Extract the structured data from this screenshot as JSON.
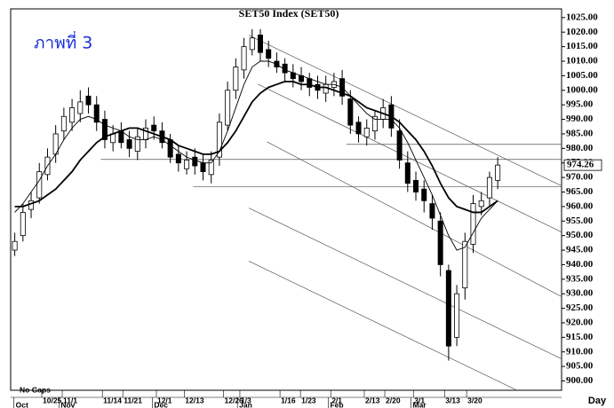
{
  "chart_data": {
    "type": "candlestick",
    "title": "SET50  Index  (SET50)",
    "annotation": "ภาพที่ 3",
    "gap_note": "No Gaps",
    "x_unit": "Day",
    "last_price": 974.26,
    "up_color": "#ffffff",
    "down_color": "#000000",
    "open": [
      945,
      950,
      959,
      963,
      971,
      978,
      986,
      989,
      992,
      998,
      995,
      990,
      982,
      986,
      983,
      979,
      983,
      988,
      986,
      983,
      978,
      973,
      977,
      975,
      971,
      977,
      988,
      1000,
      1007,
      1014,
      1019,
      1014,
      1010,
      1009,
      1006,
      1005,
      1004,
      1002,
      999,
      1001,
      1004,
      997,
      989,
      984,
      986,
      990,
      995,
      986,
      975,
      969,
      966,
      961,
      955,
      938,
      915,
      932,
      947,
      960,
      963,
      969
    ],
    "high": [
      951,
      961,
      965,
      975,
      980,
      988,
      994,
      997,
      1000,
      1001,
      998,
      993,
      988,
      989,
      986,
      987,
      990,
      991,
      989,
      985,
      981,
      979,
      980,
      978,
      979,
      992,
      1003,
      1011,
      1018,
      1021,
      1021,
      1017,
      1013,
      1011,
      1009,
      1008,
      1006,
      1005,
      1005,
      1006,
      1007,
      1000,
      991,
      990,
      993,
      997,
      998,
      990,
      979,
      972,
      969,
      964,
      958,
      940,
      933,
      951,
      964,
      965,
      972,
      977
    ],
    "low": [
      943,
      948,
      956,
      961,
      969,
      975,
      983,
      986,
      989,
      992,
      986,
      980,
      979,
      980,
      977,
      976,
      980,
      983,
      980,
      975,
      972,
      971,
      971,
      969,
      968,
      974,
      986,
      997,
      1004,
      1012,
      1010,
      1008,
      1006,
      1003,
      1001,
      1000,
      998,
      997,
      996,
      998,
      995,
      985,
      982,
      981,
      983,
      987,
      984,
      973,
      965,
      962,
      958,
      952,
      936,
      907,
      912,
      928,
      944,
      957,
      960,
      966
    ],
    "close": [
      948,
      958,
      962,
      972,
      977,
      985,
      991,
      994,
      996,
      995,
      989,
      983,
      985,
      982,
      980,
      984,
      987,
      986,
      982,
      977,
      975,
      976,
      974,
      972,
      976,
      989,
      1000,
      1008,
      1015,
      1018,
      1013,
      1011,
      1008,
      1006,
      1004,
      1003,
      1001,
      1000,
      1002,
      1003,
      998,
      988,
      985,
      987,
      991,
      994,
      987,
      976,
      968,
      965,
      962,
      956,
      940,
      912,
      930,
      948,
      961,
      962,
      970,
      974.26
    ],
    "ma_fast": [
      958,
      961,
      965,
      969,
      974,
      978,
      983,
      987,
      990,
      991,
      990,
      988,
      987,
      986,
      984,
      983,
      983,
      984,
      983,
      981,
      979,
      977,
      976,
      975,
      975,
      979,
      986,
      994,
      1002,
      1008,
      1010,
      1010,
      1009,
      1007,
      1006,
      1005,
      1004,
      1003,
      1002,
      1002,
      1001,
      998,
      995,
      992,
      990,
      990,
      990,
      987,
      982,
      976,
      970,
      964,
      957,
      950,
      945,
      946,
      951,
      956,
      959,
      962
    ],
    "ma_slow": [
      960,
      960,
      961,
      962,
      964,
      966,
      969,
      972,
      976,
      979,
      982,
      984,
      985,
      986,
      987,
      987,
      986,
      985,
      984,
      983,
      981,
      980,
      979,
      978,
      978,
      979,
      982,
      986,
      991,
      996,
      999,
      1001,
      1002,
      1003,
      1003,
      1002,
      1002,
      1001,
      1001,
      1000,
      999,
      998,
      996,
      994,
      993,
      992,
      991,
      989,
      986,
      983,
      979,
      974,
      968,
      963,
      960,
      959,
      958,
      958,
      960,
      962
    ],
    "trend_lines": [
      {
        "from": [
          28.6,
          1018.9
        ],
        "to": [
          66.8,
          967.1
        ]
      },
      {
        "from": [
          29.7,
          1002.1
        ],
        "to": [
          66.8,
          951.2
        ]
      },
      {
        "from": [
          30.8,
          982.3
        ],
        "to": [
          66.8,
          929
        ]
      },
      {
        "from": [
          28.6,
          959.5
        ],
        "to": [
          66.8,
          907.6
        ]
      },
      {
        "from": [
          28.6,
          941.2
        ],
        "to": [
          61.2,
          897
        ]
      },
      {
        "from": [
          40.5,
          981.4
        ],
        "to": [
          66.8,
          981.4
        ]
      },
      {
        "from": [
          10.5,
          976.2
        ],
        "to": [
          66.8,
          976.2
        ]
      },
      {
        "from": [
          21.8,
          966.8
        ],
        "to": [
          66.8,
          966.8
        ]
      }
    ],
    "xlim": [
      -0.5,
      66.8
    ],
    "ylim": [
      896.8,
      1028
    ],
    "xticks": [
      {
        "value": 3.3,
        "label": "10/25"
      },
      {
        "value": 5.8,
        "label": "11/1"
      },
      {
        "value": 10.7,
        "label": "11/14"
      },
      {
        "value": 13.2,
        "label": "11/21"
      },
      {
        "value": 17.3,
        "label": "12/1"
      },
      {
        "value": 20.7,
        "label": "12/13"
      },
      {
        "value": 25.5,
        "label": "12/26"
      },
      {
        "value": 27.5,
        "label": "1/3"
      },
      {
        "value": 32.4,
        "label": "1/16"
      },
      {
        "value": 34.9,
        "label": "1/23"
      },
      {
        "value": 38.6,
        "label": "2/1"
      },
      {
        "value": 42.7,
        "label": "2/13"
      },
      {
        "value": 45.2,
        "label": "2/20"
      },
      {
        "value": 48.7,
        "label": "3/1"
      },
      {
        "value": 52.5,
        "label": "3/13"
      },
      {
        "value": 55.2,
        "label": "3/20"
      }
    ],
    "month_ticks": [
      {
        "value": -0.1,
        "label": "Oct"
      },
      {
        "value": 5.4,
        "label": "Nov"
      },
      {
        "value": 16.8,
        "label": "Dec"
      },
      {
        "value": 27.2,
        "label": "Jan"
      },
      {
        "value": 38.3,
        "label": "Feb"
      },
      {
        "value": 48.4,
        "label": "Mar"
      }
    ],
    "yticks": [
      {
        "value": 900,
        "label": "900.00"
      },
      {
        "value": 905,
        "label": "905.00"
      },
      {
        "value": 910,
        "label": "910.00"
      },
      {
        "value": 915,
        "label": "915.00"
      },
      {
        "value": 920,
        "label": "920.00"
      },
      {
        "value": 925,
        "label": "925.00"
      },
      {
        "value": 930,
        "label": "930.00"
      },
      {
        "value": 935,
        "label": "935.00"
      },
      {
        "value": 940,
        "label": "940.00"
      },
      {
        "value": 945,
        "label": "945.00"
      },
      {
        "value": 950,
        "label": "950.00"
      },
      {
        "value": 955,
        "label": "955.00"
      },
      {
        "value": 960,
        "label": "960.00"
      },
      {
        "value": 965,
        "label": "965.00"
      },
      {
        "value": 970,
        "label": "970.00"
      },
      {
        "value": 975,
        "label": "975.00"
      },
      {
        "value": 980,
        "label": "980.00"
      },
      {
        "value": 985,
        "label": "985.00"
      },
      {
        "value": 990,
        "label": "990.00"
      },
      {
        "value": 995,
        "label": "995.00"
      },
      {
        "value": 1000,
        "label": "1000.00"
      },
      {
        "value": 1005,
        "label": "1005.00"
      },
      {
        "value": 1010,
        "label": "1010.00"
      },
      {
        "value": 1015,
        "label": "1015.00"
      },
      {
        "value": 1020,
        "label": "1020.00"
      },
      {
        "value": 1025,
        "label": "1025.00"
      }
    ]
  }
}
